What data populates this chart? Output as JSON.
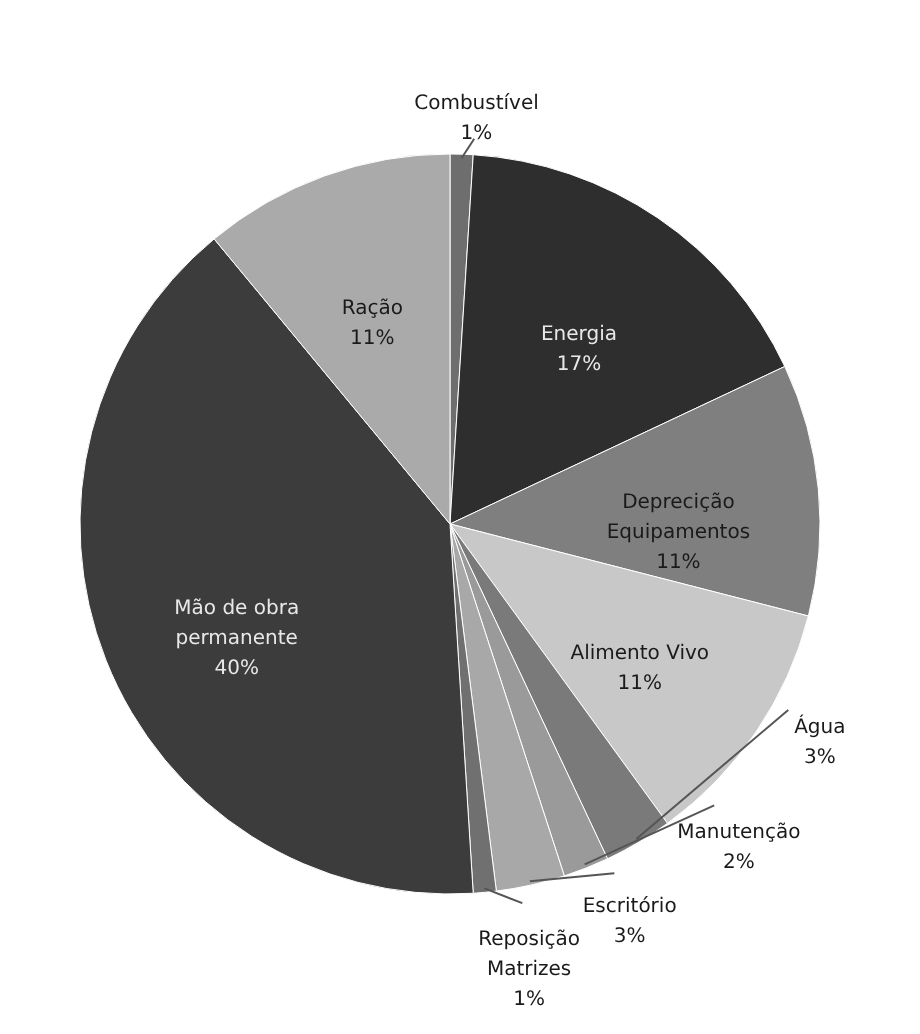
{
  "chart_data": {
    "type": "pie",
    "categories": [
      "Combustível",
      "Energia",
      "Deprecição Equipamentos",
      "Alimento Vivo",
      "Água",
      "Manutenção",
      "Escritório",
      "Reposição Matrizes",
      "Mão de obra permanente",
      "Ração"
    ],
    "values": [
      1,
      17,
      11,
      11,
      3,
      2,
      3,
      1,
      40,
      11
    ],
    "value_labels": [
      "1%",
      "17%",
      "11%",
      "11%",
      "3%",
      "2%",
      "3%",
      "1%",
      "40%",
      "11%"
    ],
    "colors": [
      "#6e6e6e",
      "#2e2e2e",
      "#7f7f7f",
      "#c8c8c8",
      "#7a7a7a",
      "#9a9a9a",
      "#a8a8a8",
      "#707070",
      "#3c3c3c",
      "#aaaaaa"
    ]
  }
}
